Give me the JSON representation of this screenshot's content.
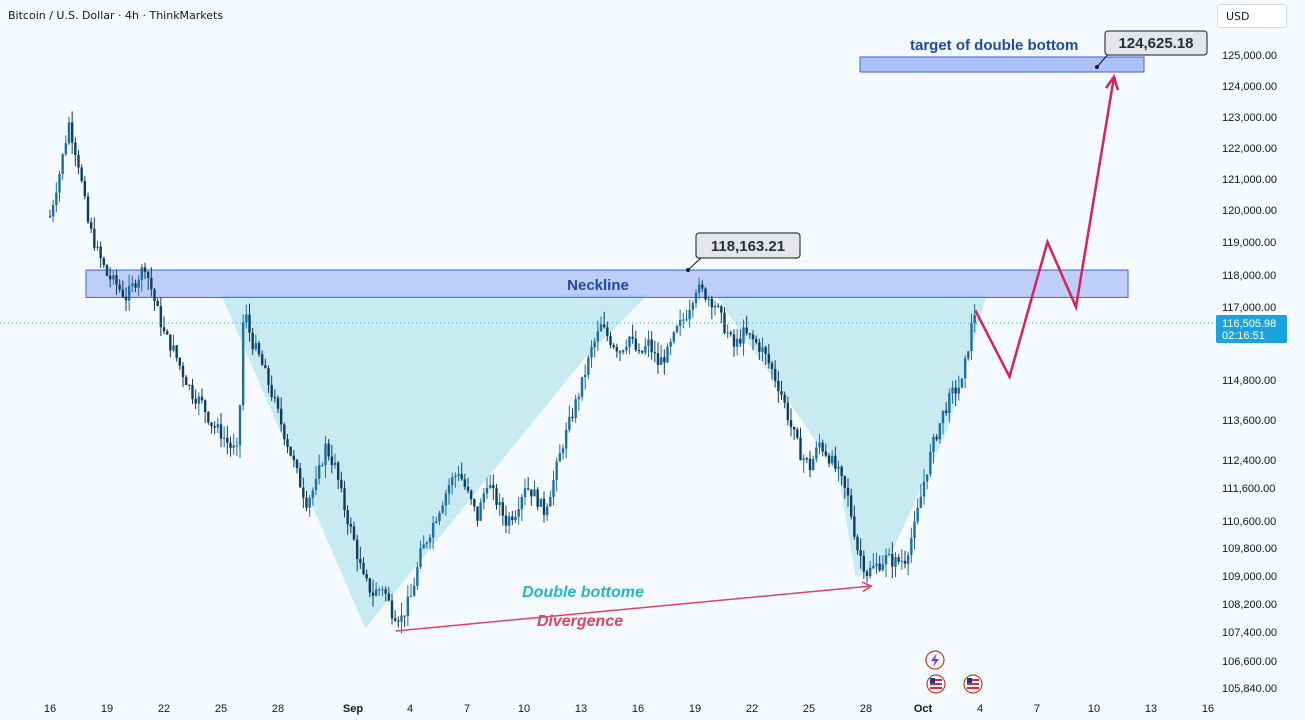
{
  "header": {
    "symbol": "Bitcoin / U.S. Dollar · 4h · ThinkMarkets"
  },
  "currency_button": {
    "label": "USD"
  },
  "colors": {
    "background": "#f4fafd",
    "candle": "#1e6fa0",
    "candle_dark": "#0f3d62",
    "zone_fill": "#9fb7f7",
    "zone_border": "#3d63e0",
    "pattern_fill": "#b9e6ee",
    "projection": "#d9215a",
    "divergence": "#e0445d",
    "pattern_label": "#26b4c9",
    "neckline_label": "#1d4aa8",
    "price_tag": "#1aa3dd"
  },
  "chart_data": {
    "type": "candlestick",
    "title": "Bitcoin / U.S. Dollar · 4h · ThinkMarkets",
    "y_ticks": [
      "125,000.00",
      "124,000.00",
      "123,000.00",
      "122,000.00",
      "121,000.00",
      "120,000.00",
      "119,000.00",
      "118,000.00",
      "117,000.00",
      "114,800.00",
      "113,600.00",
      "112,400.00",
      "111,600.00",
      "110,600.00",
      "109,800.00",
      "109,000.00",
      "108,200.00",
      "107,400.00",
      "106,600.00",
      "105,840.00"
    ],
    "x_ticks": [
      "16",
      "19",
      "22",
      "25",
      "28",
      "Sep",
      "4",
      "7",
      "10",
      "13",
      "16",
      "19",
      "22",
      "25",
      "28",
      "Oct",
      "4",
      "7",
      "10",
      "13",
      "16"
    ],
    "current_price": {
      "value": "116,505.98",
      "countdown": "02:16:51"
    },
    "neckline_zone": {
      "label": "Neckline",
      "low": 117300,
      "high": 118150
    },
    "target_zone": {
      "label": "target of double bottom",
      "low": 124500,
      "high": 125000
    },
    "callouts": [
      {
        "name": "neckline-high-callout",
        "value": "118,163.21"
      },
      {
        "name": "target-callout",
        "value": "124,625.18"
      }
    ],
    "annotations": {
      "pattern": "Double bottome",
      "divergence": "Divergence"
    },
    "candle_path_price": [
      [
        0,
        119800
      ],
      [
        0.5,
        121200
      ],
      [
        1,
        122800
      ],
      [
        1.5,
        121500
      ],
      [
        2,
        119600
      ],
      [
        2.5,
        118700
      ],
      [
        3,
        118000
      ],
      [
        3.5,
        117700
      ],
      [
        4,
        117300
      ],
      [
        4.5,
        117800
      ],
      [
        5,
        118300
      ],
      [
        5.5,
        117200
      ],
      [
        6,
        116200
      ],
      [
        6.5,
        115700
      ],
      [
        7,
        115000
      ],
      [
        7.5,
        114400
      ],
      [
        8,
        114100
      ],
      [
        8.5,
        113500
      ],
      [
        9,
        113200
      ],
      [
        9.5,
        112800
      ],
      [
        9.9,
        112600
      ],
      [
        10.2,
        117000
      ],
      [
        10.6,
        116000
      ],
      [
        11,
        115500
      ],
      [
        11.5,
        114700
      ],
      [
        12,
        113800
      ],
      [
        12.5,
        112900
      ],
      [
        13,
        112000
      ],
      [
        13.5,
        111200
      ],
      [
        14,
        111700
      ],
      [
        14.5,
        112800
      ],
      [
        15,
        112200
      ],
      [
        15.5,
        111000
      ],
      [
        16,
        110000
      ],
      [
        16.5,
        108900
      ],
      [
        17,
        108500
      ],
      [
        17.5,
        108700
      ],
      [
        18,
        108000
      ],
      [
        18.5,
        107800
      ],
      [
        19,
        108400
      ],
      [
        19.5,
        109600
      ],
      [
        20,
        110300
      ],
      [
        20.5,
        111000
      ],
      [
        21,
        111700
      ],
      [
        21.5,
        112100
      ],
      [
        22,
        111400
      ],
      [
        22.5,
        110700
      ],
      [
        23,
        111800
      ],
      [
        23.5,
        111200
      ],
      [
        24,
        110600
      ],
      [
        24.5,
        110900
      ],
      [
        25,
        111700
      ],
      [
        25.5,
        111400
      ],
      [
        26,
        110900
      ],
      [
        26.5,
        111800
      ],
      [
        27,
        112900
      ],
      [
        27.5,
        113800
      ],
      [
        28,
        114700
      ],
      [
        28.5,
        115700
      ],
      [
        29,
        116400
      ],
      [
        29.5,
        116000
      ],
      [
        30,
        115700
      ],
      [
        30.5,
        116100
      ],
      [
        31,
        115500
      ],
      [
        31.5,
        115900
      ],
      [
        32,
        115300
      ],
      [
        32.5,
        115600
      ],
      [
        33,
        116300
      ],
      [
        33.5,
        116800
      ],
      [
        34,
        117600
      ],
      [
        34.5,
        117400
      ],
      [
        35,
        117100
      ],
      [
        35.5,
        116400
      ],
      [
        36,
        115800
      ],
      [
        36.5,
        116200
      ],
      [
        37,
        116000
      ],
      [
        37.5,
        115700
      ],
      [
        38,
        115100
      ],
      [
        38.5,
        114400
      ],
      [
        39,
        113400
      ],
      [
        39.5,
        112600
      ],
      [
        40,
        112200
      ],
      [
        40.5,
        112900
      ],
      [
        41,
        112500
      ],
      [
        41.5,
        112000
      ],
      [
        42,
        111300
      ],
      [
        42.5,
        109800
      ],
      [
        43,
        109100
      ],
      [
        43.5,
        109300
      ],
      [
        44,
        109500
      ],
      [
        44.5,
        109400
      ],
      [
        45,
        109500
      ],
      [
        45.5,
        110400
      ],
      [
        46,
        111800
      ],
      [
        46.5,
        112900
      ],
      [
        47,
        113800
      ],
      [
        47.5,
        114400
      ],
      [
        48,
        114700
      ],
      [
        48.5,
        116400
      ],
      [
        48.7,
        116900
      ]
    ],
    "projection_path": [
      [
        48.7,
        116900
      ],
      [
        50.5,
        114900
      ],
      [
        52.5,
        119000
      ],
      [
        54,
        117000
      ],
      [
        56,
        124300
      ]
    ],
    "divergence_line": {
      "from": [
        18.2,
        107500
      ],
      "to": [
        42.8,
        109000
      ]
    },
    "event_icons": [
      "lightning-icon",
      "us-flag-icon",
      "us-flag-icon"
    ]
  }
}
